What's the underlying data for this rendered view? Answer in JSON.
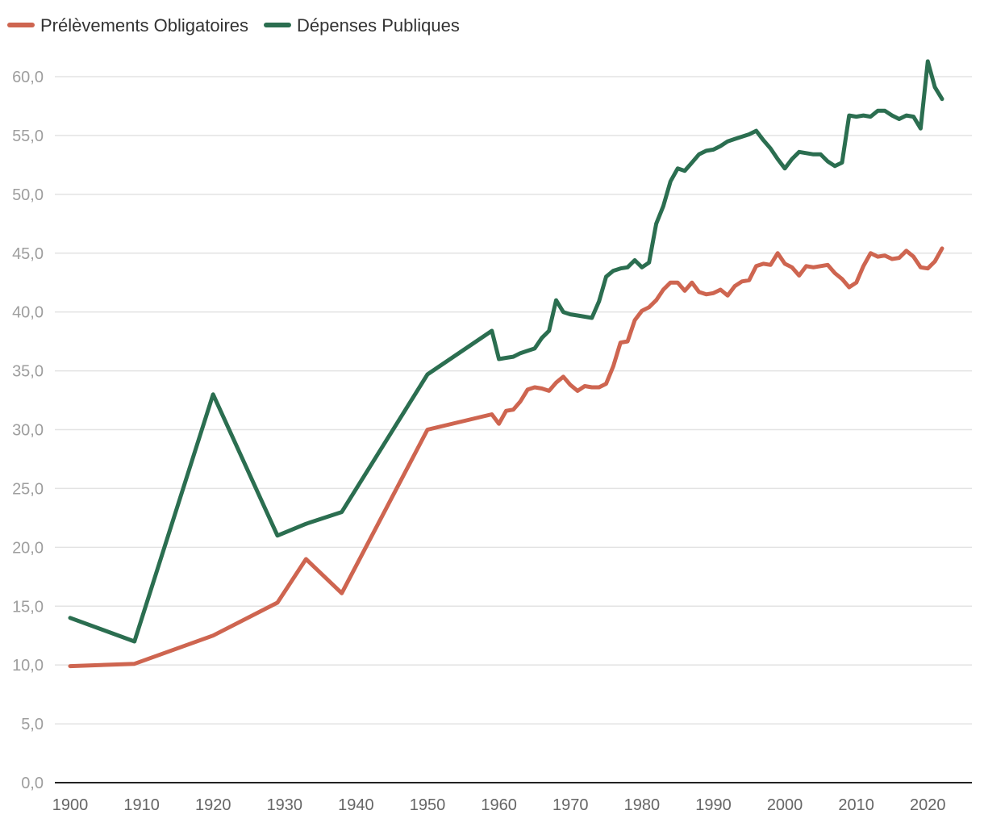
{
  "chart_data": {
    "type": "line",
    "title": "",
    "xlabel": "",
    "ylabel": "",
    "xlim": [
      1900,
      2023
    ],
    "ylim": [
      0,
      60
    ],
    "yticks": [
      0,
      5,
      10,
      15,
      20,
      25,
      30,
      35,
      40,
      45,
      50,
      55,
      60
    ],
    "ytick_labels": [
      "0,0",
      "5,0",
      "10,0",
      "15,0",
      "20,0",
      "25,0",
      "30,0",
      "35,0",
      "40,0",
      "45,0",
      "50,0",
      "55,0",
      "60,0"
    ],
    "xticks": [
      1900,
      1910,
      1920,
      1930,
      1940,
      1950,
      1960,
      1970,
      1980,
      1990,
      2000,
      2010,
      2020
    ],
    "xtick_labels": [
      "1900",
      "1910",
      "1920",
      "1930",
      "1940",
      "1950",
      "1960",
      "1970",
      "1980",
      "1990",
      "2000",
      "2010",
      "2020"
    ],
    "grid": true,
    "legend_position": "top-left",
    "series": [
      {
        "name": "Prélèvements Obligatoires",
        "color": "#CE6550",
        "x": [
          1900,
          1909,
          1920,
          1929,
          1933,
          1938,
          1950,
          1959,
          1960,
          1961,
          1962,
          1963,
          1964,
          1965,
          1966,
          1967,
          1968,
          1969,
          1970,
          1971,
          1972,
          1973,
          1974,
          1975,
          1976,
          1977,
          1978,
          1979,
          1980,
          1981,
          1982,
          1983,
          1984,
          1985,
          1986,
          1987,
          1988,
          1989,
          1990,
          1991,
          1992,
          1993,
          1994,
          1995,
          1996,
          1997,
          1998,
          1999,
          2000,
          2001,
          2002,
          2003,
          2004,
          2005,
          2006,
          2007,
          2008,
          2009,
          2010,
          2011,
          2012,
          2013,
          2014,
          2015,
          2016,
          2017,
          2018,
          2019,
          2020,
          2021,
          2022
        ],
        "values": [
          9.9,
          10.1,
          12.5,
          15.3,
          19.0,
          16.1,
          30.0,
          31.3,
          30.5,
          31.6,
          31.7,
          32.4,
          33.4,
          33.6,
          33.5,
          33.3,
          34.0,
          34.5,
          33.8,
          33.3,
          33.7,
          33.6,
          33.6,
          33.9,
          35.4,
          37.4,
          37.5,
          39.3,
          40.1,
          40.4,
          41.0,
          41.9,
          42.5,
          42.5,
          41.8,
          42.5,
          41.7,
          41.5,
          41.6,
          41.9,
          41.4,
          42.2,
          42.6,
          42.7,
          43.9,
          44.1,
          44.0,
          45.0,
          44.1,
          43.8,
          43.1,
          43.9,
          43.8,
          43.9,
          44.0,
          43.3,
          42.8,
          42.1,
          42.5,
          43.9,
          45.0,
          44.7,
          44.8,
          44.5,
          44.6,
          45.2,
          44.7,
          43.8,
          43.7,
          44.3,
          45.4
        ]
      },
      {
        "name": "Dépenses Publiques",
        "color": "#2B6E50",
        "x": [
          1900,
          1909,
          1920,
          1929,
          1933,
          1938,
          1950,
          1959,
          1960,
          1961,
          1962,
          1963,
          1964,
          1965,
          1966,
          1967,
          1968,
          1969,
          1970,
          1971,
          1972,
          1973,
          1974,
          1975,
          1976,
          1977,
          1978,
          1979,
          1980,
          1981,
          1982,
          1983,
          1984,
          1985,
          1986,
          1987,
          1988,
          1989,
          1990,
          1991,
          1992,
          1993,
          1994,
          1995,
          1996,
          1997,
          1998,
          1999,
          2000,
          2001,
          2002,
          2003,
          2004,
          2005,
          2006,
          2007,
          2008,
          2009,
          2010,
          2011,
          2012,
          2013,
          2014,
          2015,
          2016,
          2017,
          2018,
          2019,
          2020,
          2021,
          2022
        ],
        "values": [
          14.0,
          12.0,
          33.0,
          21.0,
          22.0,
          23.0,
          34.7,
          38.4,
          36.0,
          36.1,
          36.2,
          36.5,
          36.7,
          36.9,
          37.8,
          38.4,
          41.0,
          40.0,
          39.8,
          39.7,
          39.6,
          39.5,
          40.9,
          43.0,
          43.5,
          43.7,
          43.8,
          44.4,
          43.8,
          44.2,
          47.5,
          49.0,
          51.1,
          52.2,
          52.0,
          52.7,
          53.4,
          53.7,
          53.8,
          54.1,
          54.5,
          54.7,
          54.9,
          55.1,
          55.4,
          54.6,
          53.9,
          53.0,
          52.2,
          53.0,
          53.6,
          53.5,
          53.4,
          53.4,
          52.8,
          52.4,
          52.7,
          56.7,
          56.6,
          56.7,
          56.6,
          57.1,
          57.1,
          56.7,
          56.4,
          56.7,
          56.6,
          55.6,
          61.3,
          59.1,
          58.1
        ]
      }
    ]
  }
}
